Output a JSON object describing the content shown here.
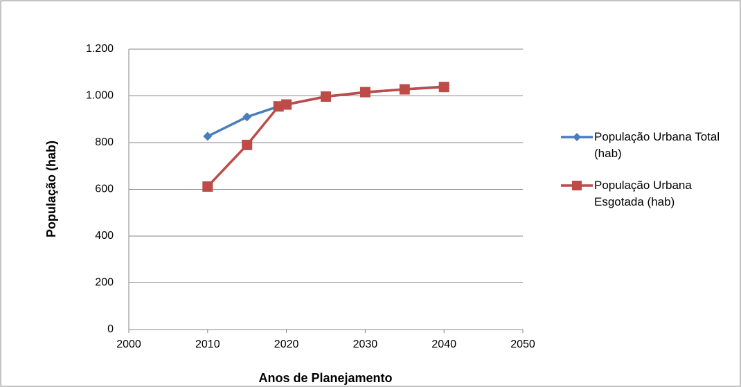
{
  "chart_data": {
    "type": "line",
    "xlabel": "Anos de Planejamento",
    "ylabel": "População (hab)",
    "xlim": [
      2000,
      2050
    ],
    "xticks": [
      2000,
      2010,
      2020,
      2030,
      2040,
      2050
    ],
    "ylim": [
      0,
      1200
    ],
    "yticks": [
      0,
      200,
      400,
      600,
      800,
      {
        "value": 1000,
        "label": "1.000"
      },
      {
        "value": 1200,
        "label": "1.200"
      }
    ],
    "grid": true,
    "legend": "right",
    "series": [
      {
        "name": "População Urbana Total (hab)",
        "color": "#4a7ebb",
        "marker": "diamond",
        "x": [
          2010,
          2015,
          2019,
          2020,
          2025,
          2030,
          2035,
          2040
        ],
        "values": [
          827,
          910,
          955,
          963,
          997,
          1015,
          1028,
          1040
        ]
      },
      {
        "name": "População Urbana Esgotada (hab)",
        "color": "#be4b48",
        "marker": "square",
        "x": [
          2010,
          2015,
          2019,
          2020,
          2025,
          2030,
          2035,
          2040
        ],
        "values": [
          612,
          790,
          955,
          963,
          997,
          1016,
          1028,
          1038
        ]
      }
    ]
  }
}
